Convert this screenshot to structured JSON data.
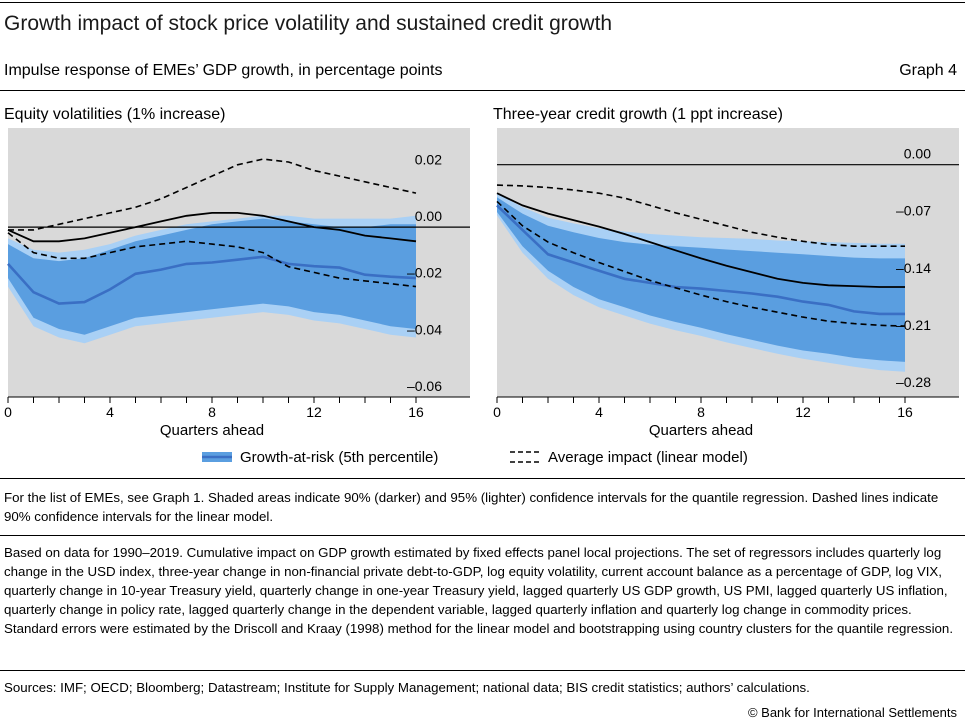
{
  "header": {
    "title": "Growth impact of stock price volatility and sustained credit growth",
    "subtitle": "Impulse response of EMEs’ GDP growth, in percentage points",
    "graph_number": "Graph 4"
  },
  "colors": {
    "plot_bg": "#d9d9d9",
    "band_95": "#a9d0f5",
    "band_90": "#5a9ee0",
    "quantile_line": "#3a6fc4",
    "linear_line": "#000000"
  },
  "legend": {
    "quantile_label": "Growth-at-risk (5th percentile)",
    "linear_label": "Average impact (linear model)"
  },
  "chart_data": [
    {
      "type": "line",
      "title": "Equity volatilities (1% increase)",
      "xlabel": "Quarters ahead",
      "ylabel": "",
      "x": [
        0,
        1,
        2,
        3,
        4,
        5,
        6,
        7,
        8,
        9,
        10,
        11,
        12,
        13,
        14,
        15,
        16
      ],
      "xticks": [
        0,
        4,
        8,
        12,
        16
      ],
      "xlim": [
        0,
        16
      ],
      "ylim": [
        -0.06,
        0.035
      ],
      "yticks": [
        0.02,
        0.0,
        -0.02,
        -0.04,
        -0.06
      ],
      "ytick_labels": [
        "0.02",
        "0.00",
        "–0.02",
        "–0.04",
        "–0.06"
      ],
      "series": [
        {
          "name": "Growth-at-risk (5th percentile)",
          "role": "quantile",
          "values": [
            -0.013,
            -0.023,
            -0.027,
            -0.0265,
            -0.022,
            -0.0165,
            -0.015,
            -0.013,
            -0.0125,
            -0.0115,
            -0.0105,
            -0.013,
            -0.0138,
            -0.0143,
            -0.0168,
            -0.0175,
            -0.018
          ]
        },
        {
          "role": "q90_upper",
          "values": [
            -0.006,
            -0.011,
            -0.012,
            -0.011,
            -0.008,
            -0.005,
            -0.003,
            -0.001,
            0.001,
            0.002,
            0.003,
            0.002,
            0.001,
            0.0,
            0.0,
            0.001,
            0.001
          ]
        },
        {
          "role": "q90_lower",
          "values": [
            -0.018,
            -0.032,
            -0.036,
            -0.038,
            -0.035,
            -0.032,
            -0.031,
            -0.03,
            -0.029,
            -0.028,
            -0.027,
            -0.028,
            -0.03,
            -0.031,
            -0.033,
            -0.035,
            -0.036
          ]
        },
        {
          "role": "q95_upper",
          "values": [
            -0.004,
            -0.008,
            -0.009,
            -0.008,
            -0.006,
            -0.003,
            -0.001,
            0.001,
            0.002,
            0.003,
            0.004,
            0.004,
            0.003,
            0.003,
            0.003,
            0.003,
            0.004
          ]
        },
        {
          "role": "q95_lower",
          "values": [
            -0.021,
            -0.035,
            -0.039,
            -0.041,
            -0.038,
            -0.035,
            -0.034,
            -0.033,
            -0.032,
            -0.031,
            -0.03,
            -0.031,
            -0.033,
            -0.034,
            -0.036,
            -0.038,
            -0.039
          ]
        },
        {
          "name": "Average impact (linear model)",
          "role": "linear",
          "values": [
            -0.001,
            -0.005,
            -0.005,
            -0.004,
            -0.002,
            0.0,
            0.002,
            0.004,
            0.005,
            0.005,
            0.004,
            0.002,
            0.0,
            -0.001,
            -0.003,
            -0.004,
            -0.005
          ]
        },
        {
          "role": "linear_upper",
          "values": [
            -0.001,
            -0.001,
            0.001,
            0.003,
            0.005,
            0.007,
            0.01,
            0.014,
            0.018,
            0.022,
            0.024,
            0.023,
            0.02,
            0.018,
            0.016,
            0.014,
            0.012
          ]
        },
        {
          "role": "linear_lower",
          "values": [
            -0.002,
            -0.009,
            -0.011,
            -0.011,
            -0.009,
            -0.007,
            -0.006,
            -0.005,
            -0.006,
            -0.007,
            -0.009,
            -0.014,
            -0.016,
            -0.018,
            -0.019,
            -0.02,
            -0.021
          ]
        }
      ]
    },
    {
      "type": "line",
      "title": "Three-year credit growth (1 ppt increase)",
      "xlabel": "Quarters ahead",
      "ylabel": "",
      "x": [
        0,
        1,
        2,
        3,
        4,
        5,
        6,
        7,
        8,
        9,
        10,
        11,
        12,
        13,
        14,
        15,
        16
      ],
      "xticks": [
        0,
        4,
        8,
        12,
        16
      ],
      "xlim": [
        0,
        16
      ],
      "ylim": [
        -0.285,
        0.045
      ],
      "yticks": [
        0.0,
        -0.07,
        -0.14,
        -0.21,
        -0.28
      ],
      "ytick_labels": [
        "0.00",
        "–0.07",
        "–0.14",
        "–0.21",
        "–0.28"
      ],
      "series": [
        {
          "name": "Growth-at-risk (5th percentile)",
          "role": "quantile",
          "values": [
            -0.05,
            -0.08,
            -0.11,
            -0.12,
            -0.13,
            -0.14,
            -0.145,
            -0.15,
            -0.152,
            -0.155,
            -0.158,
            -0.162,
            -0.168,
            -0.172,
            -0.18,
            -0.183,
            -0.183
          ]
        },
        {
          "role": "q90_upper",
          "values": [
            -0.04,
            -0.06,
            -0.075,
            -0.083,
            -0.09,
            -0.095,
            -0.098,
            -0.1,
            -0.102,
            -0.104,
            -0.106,
            -0.108,
            -0.11,
            -0.112,
            -0.114,
            -0.115,
            -0.115
          ]
        },
        {
          "role": "q90_lower",
          "values": [
            -0.058,
            -0.1,
            -0.13,
            -0.15,
            -0.165,
            -0.175,
            -0.185,
            -0.193,
            -0.2,
            -0.208,
            -0.215,
            -0.222,
            -0.228,
            -0.232,
            -0.237,
            -0.24,
            -0.242
          ]
        },
        {
          "role": "q95_upper",
          "values": [
            -0.035,
            -0.052,
            -0.065,
            -0.072,
            -0.078,
            -0.082,
            -0.085,
            -0.087,
            -0.089,
            -0.09,
            -0.091,
            -0.093,
            -0.094,
            -0.095,
            -0.096,
            -0.097,
            -0.097
          ]
        },
        {
          "role": "q95_lower",
          "values": [
            -0.062,
            -0.108,
            -0.14,
            -0.16,
            -0.175,
            -0.185,
            -0.195,
            -0.203,
            -0.21,
            -0.218,
            -0.225,
            -0.232,
            -0.238,
            -0.243,
            -0.248,
            -0.252,
            -0.254
          ]
        },
        {
          "name": "Average impact (linear model)",
          "role": "linear",
          "values": [
            -0.035,
            -0.05,
            -0.06,
            -0.068,
            -0.076,
            -0.085,
            -0.095,
            -0.105,
            -0.115,
            -0.124,
            -0.132,
            -0.14,
            -0.145,
            -0.148,
            -0.149,
            -0.15,
            -0.15
          ]
        },
        {
          "role": "linear_upper",
          "values": [
            -0.025,
            -0.026,
            -0.028,
            -0.031,
            -0.035,
            -0.041,
            -0.05,
            -0.059,
            -0.067,
            -0.075,
            -0.083,
            -0.089,
            -0.094,
            -0.098,
            -0.1,
            -0.1,
            -0.1
          ]
        },
        {
          "role": "linear_lower",
          "values": [
            -0.045,
            -0.075,
            -0.095,
            -0.108,
            -0.12,
            -0.131,
            -0.142,
            -0.151,
            -0.16,
            -0.168,
            -0.175,
            -0.181,
            -0.187,
            -0.192,
            -0.195,
            -0.197,
            -0.198
          ]
        }
      ]
    }
  ],
  "notes": {
    "note1": "For the list of EMEs, see Graph 1. Shaded areas indicate 90% (darker) and 95% (lighter) confidence intervals for the quantile regression. Dashed lines indicate 90% confidence intervals for the linear model.",
    "note2": "Based on data for 1990–2019. Cumulative impact on GDP growth estimated by fixed effects panel local projections. The set of regressors includes quarterly log change in the USD index, three-year change in non-financial private debt-to-GDP, log equity volatility, current account balance as a percentage of GDP, log VIX, quarterly change in 10-year Treasury yield, quarterly change in one-year Treasury yield, lagged quarterly US GDP growth, US PMI, lagged quarterly US inflation, quarterly change in policy rate, lagged quarterly change in the dependent variable, lagged quarterly inflation and quarterly log change in commodity prices. Standard errors were estimated by the Driscoll and Kraay (1998) method for the linear model and bootstrapping using country clusters for the quantile regression.",
    "sources": "Sources: IMF; OECD; Bloomberg; Datastream; Institute for Supply Management; national data; BIS credit statistics; authors’ calculations.",
    "copyright": "© Bank for International Settlements"
  }
}
